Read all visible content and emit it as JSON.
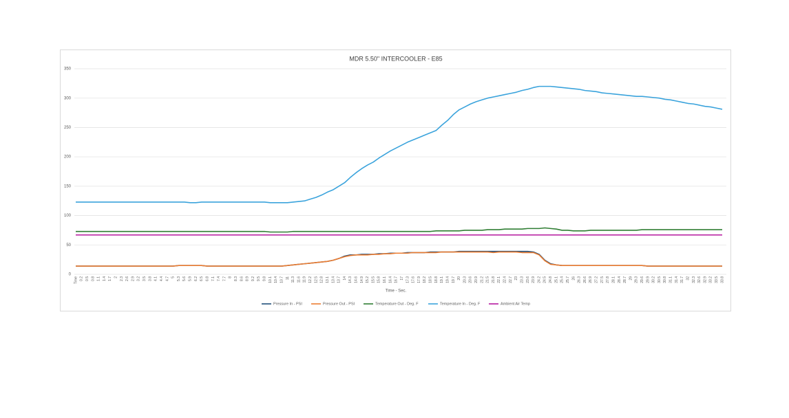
{
  "chart_data": {
    "type": "line",
    "title": "MDR 5.50\" INTERCOOLER - E85",
    "x_label": "Time - Sec.",
    "categories": [
      "Time",
      "0.2",
      "0.5",
      "0.8",
      "1.1",
      "1.4",
      "1.7",
      "2",
      "2.3",
      "2.6",
      "2.9",
      "3.2",
      "3.5",
      "3.8",
      "4.1",
      "4.4",
      "4.7",
      "5",
      "5.3",
      "5.6",
      "5.9",
      "6.2",
      "6.5",
      "6.8",
      "7.1",
      "7.4",
      "7.7",
      "8",
      "8.3",
      "8.6",
      "8.9",
      "9.2",
      "9.5",
      "9.8",
      "10.1",
      "10.4",
      "10.7",
      "11",
      "11.3",
      "11.6",
      "11.9",
      "12.2",
      "12.5",
      "12.8",
      "13.1",
      "13.4",
      "13.7",
      "14",
      "14.3",
      "14.6",
      "14.9",
      "15.2",
      "15.5",
      "15.8",
      "16.1",
      "16.4",
      "16.7",
      "17",
      "17.3",
      "17.6",
      "17.9",
      "18.2",
      "18.5",
      "18.8",
      "19.1",
      "19.4",
      "19.7",
      "20",
      "20.3",
      "20.6",
      "20.9",
      "21.2",
      "21.5",
      "21.8",
      "22.1",
      "22.4",
      "22.7",
      "23",
      "23.3",
      "23.6",
      "23.9",
      "24.2",
      "24.5",
      "24.8",
      "25.1",
      "25.4",
      "25.7",
      "26",
      "26.3",
      "26.6",
      "26.9",
      "27.2",
      "27.5",
      "27.8",
      "28.1",
      "28.4",
      "28.7",
      "29",
      "29.3",
      "29.6",
      "29.9",
      "30.2",
      "30.5",
      "30.8",
      "31.1",
      "31.4",
      "31.7",
      "32",
      "32.3",
      "32.6",
      "32.9",
      "33.2",
      "33.5",
      "33.8"
    ],
    "series": [
      {
        "name": "Pressure In - PSI",
        "color": "#1f4e79",
        "values": [
          14,
          14,
          14,
          14,
          14,
          14,
          14,
          14,
          14,
          14,
          14,
          14,
          14,
          14,
          14,
          14,
          14,
          14,
          15,
          15,
          15,
          15,
          15,
          14,
          14,
          14,
          14,
          14,
          14,
          14,
          14,
          14,
          14,
          14,
          14,
          14,
          14,
          15,
          16,
          17,
          18,
          19,
          20,
          21,
          22,
          24,
          27,
          31,
          33,
          33,
          34,
          34,
          34,
          35,
          35,
          36,
          36,
          36,
          37,
          37,
          37,
          37,
          38,
          38,
          38,
          38,
          38,
          39,
          39,
          39,
          39,
          39,
          39,
          39,
          39,
          39,
          39,
          39,
          39,
          39,
          38,
          34,
          24,
          18,
          16,
          15,
          15,
          15,
          15,
          15,
          15,
          15,
          15,
          15,
          15,
          15,
          15,
          15,
          15,
          15,
          14,
          14,
          14,
          14,
          14,
          14,
          14,
          14,
          14,
          14,
          14,
          14,
          14,
          14
        ]
      },
      {
        "name": "Pressure Out - PSI",
        "color": "#ed7d31",
        "values": [
          14,
          14,
          14,
          14,
          14,
          14,
          14,
          14,
          14,
          14,
          14,
          14,
          14,
          14,
          14,
          14,
          14,
          14,
          15,
          15,
          15,
          15,
          15,
          14,
          14,
          14,
          14,
          14,
          14,
          14,
          14,
          14,
          14,
          14,
          14,
          14,
          14,
          15,
          16,
          17,
          18,
          19,
          20,
          21,
          22,
          24,
          27,
          30,
          32,
          33,
          33,
          33,
          34,
          34,
          35,
          35,
          36,
          36,
          36,
          37,
          37,
          37,
          37,
          37,
          38,
          38,
          38,
          38,
          38,
          38,
          38,
          38,
          38,
          37,
          38,
          38,
          38,
          38,
          37,
          37,
          37,
          33,
          23,
          17,
          16,
          15,
          15,
          15,
          15,
          15,
          15,
          15,
          15,
          15,
          15,
          15,
          15,
          15,
          15,
          15,
          14,
          14,
          14,
          14,
          14,
          14,
          14,
          14,
          14,
          14,
          14,
          14,
          14,
          14
        ]
      },
      {
        "name": "Temperature Out - Deg. F",
        "color": "#2e7d32",
        "values": [
          73,
          73,
          73,
          73,
          73,
          73,
          73,
          73,
          73,
          73,
          73,
          73,
          73,
          73,
          73,
          73,
          73,
          73,
          73,
          73,
          73,
          73,
          73,
          73,
          73,
          73,
          73,
          73,
          73,
          73,
          73,
          73,
          73,
          73,
          72,
          72,
          72,
          72,
          73,
          73,
          73,
          73,
          73,
          73,
          73,
          73,
          73,
          73,
          73,
          73,
          73,
          73,
          73,
          73,
          73,
          73,
          73,
          73,
          73,
          73,
          73,
          73,
          73,
          74,
          74,
          74,
          74,
          74,
          75,
          75,
          75,
          75,
          76,
          76,
          76,
          77,
          77,
          77,
          77,
          78,
          78,
          78,
          79,
          78,
          77,
          75,
          75,
          74,
          74,
          74,
          75,
          75,
          75,
          75,
          75,
          75,
          75,
          75,
          75,
          76,
          76,
          76,
          76,
          76,
          76,
          76,
          76,
          76,
          76,
          76,
          76,
          76,
          76,
          76
        ]
      },
      {
        "name": "Temperature In - Deg. F",
        "color": "#3aa3dc",
        "values": [
          123,
          123,
          123,
          123,
          123,
          123,
          123,
          123,
          123,
          123,
          123,
          123,
          123,
          123,
          123,
          123,
          123,
          123,
          123,
          123,
          122,
          122,
          123,
          123,
          123,
          123,
          123,
          123,
          123,
          123,
          123,
          123,
          123,
          123,
          122,
          122,
          122,
          122,
          123,
          124,
          125,
          128,
          131,
          135,
          140,
          144,
          150,
          156,
          165,
          173,
          180,
          186,
          191,
          198,
          204,
          210,
          215,
          220,
          225,
          229,
          233,
          237,
          241,
          245,
          254,
          262,
          272,
          280,
          285,
          290,
          294,
          297,
          300,
          302,
          304,
          306,
          308,
          310,
          313,
          315,
          318,
          320,
          320,
          320,
          319,
          318,
          317,
          316,
          315,
          313,
          312,
          311,
          309,
          308,
          307,
          306,
          305,
          304,
          303,
          303,
          302,
          301,
          300,
          298,
          297,
          295,
          293,
          291,
          290,
          288,
          286,
          285,
          283,
          281
        ]
      },
      {
        "name": "Ambient Air Temp",
        "color": "#b5179e",
        "values": [
          67,
          67,
          67,
          67,
          67,
          67,
          67,
          67,
          67,
          67,
          67,
          67,
          67,
          67,
          67,
          67,
          67,
          67,
          67,
          67,
          67,
          67,
          67,
          67,
          67,
          67,
          67,
          67,
          67,
          67,
          67,
          67,
          67,
          67,
          67,
          67,
          67,
          67,
          67,
          67,
          67,
          67,
          67,
          67,
          67,
          67,
          67,
          67,
          67,
          67,
          67,
          67,
          67,
          67,
          67,
          67,
          67,
          67,
          67,
          67,
          67,
          67,
          67,
          67,
          67,
          67,
          67,
          67,
          67,
          67,
          67,
          67,
          67,
          67,
          67,
          67,
          67,
          67,
          67,
          67,
          67,
          67,
          67,
          67,
          67,
          67,
          67,
          67,
          67,
          67,
          67,
          67,
          67,
          67,
          67,
          67,
          67,
          67,
          67,
          67,
          67,
          67,
          67,
          67,
          67,
          67,
          67,
          67,
          67,
          67,
          67,
          67,
          67,
          67
        ]
      }
    ],
    "ylim": [
      0,
      350
    ],
    "yticks": [
      0,
      50,
      100,
      150,
      200,
      250,
      300,
      350
    ],
    "grid": true,
    "legend": "bottom"
  }
}
